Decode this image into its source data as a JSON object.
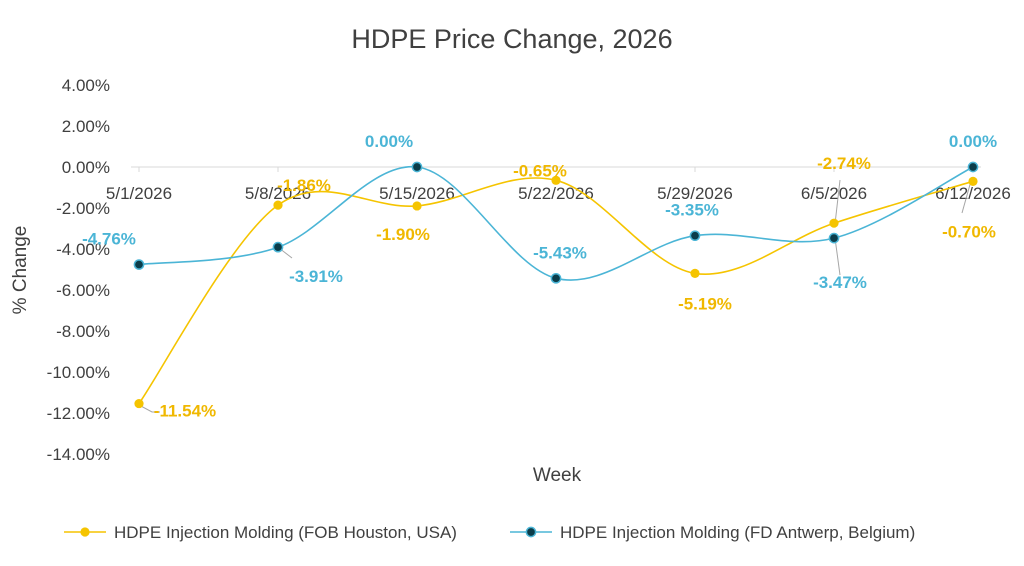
{
  "chart_data": {
    "type": "line",
    "title": "HDPE Price Change, 2026",
    "xlabel": "Week",
    "ylabel": "% Change",
    "categories": [
      "5/1/2026",
      "5/8/2026",
      "5/15/2026",
      "5/22/2026",
      "5/29/2026",
      "6/5/2026",
      "6/12/2026"
    ],
    "ylim": [
      -14,
      4
    ],
    "yticks": [
      4,
      2,
      0,
      -2,
      -4,
      -6,
      -8,
      -10,
      -12,
      -14
    ],
    "ytick_labels": [
      "4.00%",
      "2.00%",
      "0.00%",
      "-2.00%",
      "-4.00%",
      "-6.00%",
      "-8.00%",
      "-10.00%",
      "-12.00%",
      "-14.00%"
    ],
    "smooth": true,
    "grid": false,
    "legend_position": "bottom",
    "series": [
      {
        "name": "HDPE Injection Molding (FOB Houston, USA)",
        "color": "#f5c400",
        "label_color": "#f0b800",
        "values": [
          -11.54,
          -1.86,
          -1.9,
          -0.65,
          -5.19,
          -2.74,
          -0.7
        ],
        "labels": [
          "-11.54%",
          "-1.86%",
          "-1.90%",
          "-0.65%",
          "-5.19%",
          "-2.74%",
          "-0.70%"
        ]
      },
      {
        "name": "HDPE Injection Molding (FD Antwerp, Belgium)",
        "color": "#4bb5d6",
        "label_color": "#4bb5d6",
        "values": [
          -4.76,
          -3.91,
          0.0,
          -5.43,
          -3.35,
          -3.47,
          0.0
        ],
        "labels": [
          "-4.76%",
          "-3.91%",
          "0.00%",
          "-5.43%",
          "-3.35%",
          "-3.47%",
          "0.00%"
        ]
      }
    ]
  }
}
